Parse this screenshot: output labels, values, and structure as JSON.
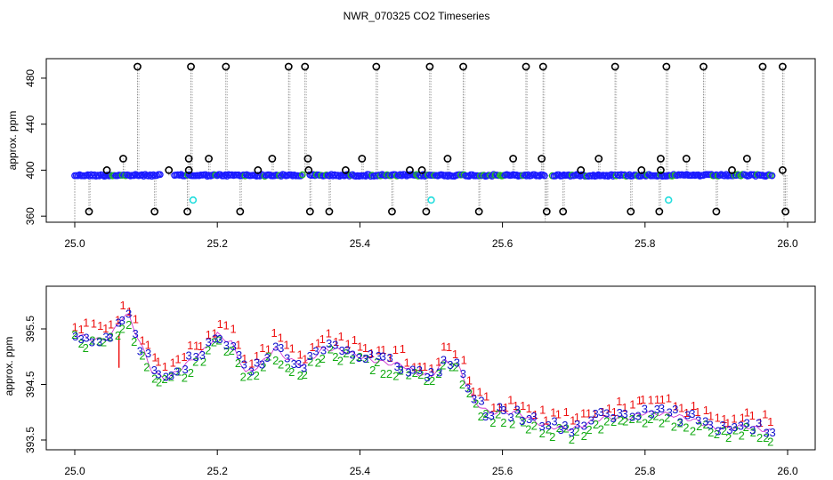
{
  "title": "NWR_070325  CO2 Timeseries",
  "colors": {
    "outlier_ring": "#000000",
    "blue_points": "#1a1aff",
    "green_points": "#22b322",
    "cyan_points": "#22dddd",
    "spike_lines": "#8c8c8c",
    "series_1": "#ee1111",
    "series_2": "#11aa11",
    "series_3": "#1111cc",
    "trace_line": "#cc22cc"
  },
  "chart_data": [
    {
      "type": "scatter",
      "title": "",
      "xlabel": "",
      "ylabel": "approx. ppm",
      "xlim": [
        25.0,
        26.0
      ],
      "ylim": [
        350,
        497
      ],
      "xticks": [
        "25.0",
        "25.2",
        "25.4",
        "25.6",
        "25.8",
        "26.0"
      ],
      "yticks": [
        "360",
        "400",
        "440",
        "480"
      ],
      "grid": false,
      "baseline": 395.5,
      "baseline_segments": [
        [
          25.0,
          25.12
        ],
        [
          25.14,
          25.32
        ],
        [
          25.33,
          25.66
        ],
        [
          25.67,
          25.98
        ]
      ],
      "outliers_high": [
        {
          "x": 25.088,
          "y": 490
        },
        {
          "x": 25.163,
          "y": 490
        },
        {
          "x": 25.212,
          "y": 490
        },
        {
          "x": 25.3,
          "y": 490
        },
        {
          "x": 25.323,
          "y": 490
        },
        {
          "x": 25.423,
          "y": 490
        },
        {
          "x": 25.498,
          "y": 490
        },
        {
          "x": 25.545,
          "y": 490
        },
        {
          "x": 25.633,
          "y": 490
        },
        {
          "x": 25.657,
          "y": 490
        },
        {
          "x": 25.758,
          "y": 490
        },
        {
          "x": 25.83,
          "y": 490
        },
        {
          "x": 25.882,
          "y": 490
        },
        {
          "x": 25.965,
          "y": 490
        },
        {
          "x": 25.993,
          "y": 490
        }
      ],
      "outliers_mid": [
        {
          "x": 25.068,
          "y": 410
        },
        {
          "x": 25.045,
          "y": 400
        },
        {
          "x": 25.132,
          "y": 400
        },
        {
          "x": 25.16,
          "y": 410
        },
        {
          "x": 25.16,
          "y": 400
        },
        {
          "x": 25.188,
          "y": 410
        },
        {
          "x": 25.257,
          "y": 400
        },
        {
          "x": 25.277,
          "y": 410
        },
        {
          "x": 25.327,
          "y": 410
        },
        {
          "x": 25.328,
          "y": 400
        },
        {
          "x": 25.38,
          "y": 400
        },
        {
          "x": 25.403,
          "y": 410
        },
        {
          "x": 25.47,
          "y": 400
        },
        {
          "x": 25.487,
          "y": 400
        },
        {
          "x": 25.523,
          "y": 410
        },
        {
          "x": 25.615,
          "y": 410
        },
        {
          "x": 25.655,
          "y": 410
        },
        {
          "x": 25.71,
          "y": 400
        },
        {
          "x": 25.735,
          "y": 410
        },
        {
          "x": 25.795,
          "y": 400
        },
        {
          "x": 25.822,
          "y": 410
        },
        {
          "x": 25.822,
          "y": 400
        },
        {
          "x": 25.858,
          "y": 410
        },
        {
          "x": 25.922,
          "y": 400
        },
        {
          "x": 25.943,
          "y": 410
        },
        {
          "x": 25.993,
          "y": 400
        }
      ],
      "outliers_low": [
        {
          "x": 25.02,
          "y": 364
        },
        {
          "x": 25.112,
          "y": 364
        },
        {
          "x": 25.158,
          "y": 364
        },
        {
          "x": 25.232,
          "y": 364
        },
        {
          "x": 25.33,
          "y": 364
        },
        {
          "x": 25.357,
          "y": 364
        },
        {
          "x": 25.445,
          "y": 364
        },
        {
          "x": 25.493,
          "y": 364
        },
        {
          "x": 25.567,
          "y": 364
        },
        {
          "x": 25.662,
          "y": 364
        },
        {
          "x": 25.685,
          "y": 364
        },
        {
          "x": 25.78,
          "y": 364
        },
        {
          "x": 25.82,
          "y": 364
        },
        {
          "x": 25.9,
          "y": 364
        },
        {
          "x": 25.997,
          "y": 364
        }
      ],
      "cyan_points": [
        {
          "x": 25.166,
          "y": 374
        },
        {
          "x": 25.5,
          "y": 374
        },
        {
          "x": 25.833,
          "y": 374
        }
      ]
    },
    {
      "type": "scatter",
      "title": "",
      "xlabel": "",
      "ylabel": "approx. ppm",
      "xlim": [
        25.0,
        26.0
      ],
      "ylim": [
        393.25,
        396.3
      ],
      "xticks": [
        "25.0",
        "25.2",
        "25.4",
        "25.6",
        "25.8",
        "26.0"
      ],
      "yticks": [
        "393.5",
        "394.5",
        "395.5"
      ],
      "grid": false,
      "point_symbols": [
        "1",
        "2",
        "3"
      ],
      "series_trend": {
        "x": [
          25.0,
          25.03,
          25.05,
          25.065,
          25.075,
          25.09,
          25.11,
          25.13,
          25.15,
          25.18,
          25.2,
          25.22,
          25.24,
          25.26,
          25.28,
          25.3,
          25.32,
          25.35,
          25.38,
          25.4,
          25.43,
          25.46,
          25.48,
          25.5,
          25.52,
          25.54,
          25.56,
          25.58,
          25.62,
          25.66,
          25.7,
          25.74,
          25.78,
          25.8,
          25.84,
          25.87,
          25.9,
          25.94,
          25.98
        ],
        "y": [
          395.4,
          395.3,
          395.35,
          395.7,
          395.75,
          395.3,
          394.7,
          394.6,
          394.8,
          395.1,
          395.4,
          395.25,
          394.7,
          394.85,
          395.15,
          394.95,
          394.85,
          395.15,
          395.1,
          395.0,
          394.9,
          394.85,
          394.7,
          394.65,
          394.95,
          394.8,
          394.2,
          394.0,
          394.0,
          393.75,
          393.7,
          393.9,
          393.9,
          394.0,
          393.95,
          393.85,
          393.7,
          393.75,
          393.65
        ]
      }
    }
  ]
}
